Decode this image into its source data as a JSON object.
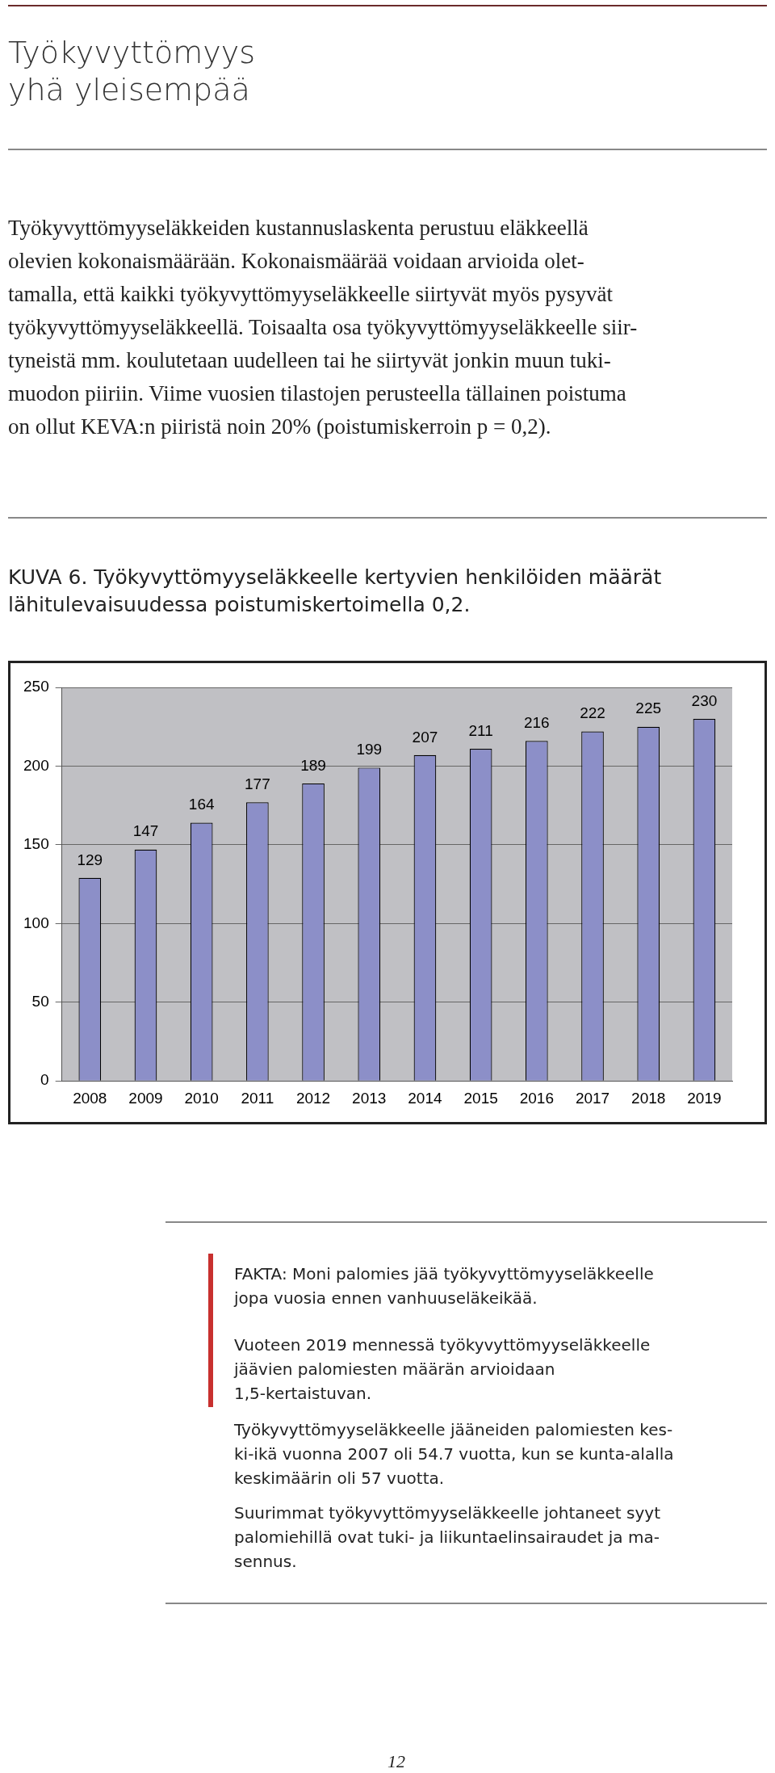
{
  "chart_data": {
    "type": "bar",
    "title": "Työkyvyttömyys\nyhä yleisempää",
    "subtitle": "KUVA 6. Työkyvyttömyyseläkkeelle kertyvien henkilöiden määrät\nlähitulevaisuudessa poistumiskertoimella 0,2.",
    "annotations": [
      "Työkyvyttömyyseläkkeiden kustannuslaskenta perustuu eläkkeellä\nolevien kokonaismäärään. Kokonaismäärää voidaan arvioida olet-\ntamalla, että kaikki työkyvyttömyyseläkkeelle siirtyvät myös pysyvät\ntyökyvyttömyyseläkkeellä. Toisaalta osa työkyvyttömyyseläkkeelle siir-\ntyneistä mm. koulutetaan uudelleen tai he siirtyvät jonkin muun tuki-\nmuodon piiriin. Viime vuosien tilastojen perusteella tällainen poistuma\non ollut KEVA:n piiristä noin 20% (poistumiskerroin p = 0,2).",
      "FAKTA: Moni palomies jää työkyvyttömyyseläkkeelle\njopa vuosia ennen vanhuuseläkeikää.",
      "Vuoteen 2019 mennessä työkyvyttömyyseläkkeelle\njäävien palomiesten määrän arvioidaan\n1,5-kertaistuvan.",
      "Työkyvyttömyyseläkkeelle jääneiden palomiesten kes-\nki-ikä vuonna 2007 oli 54.7 vuotta, kun se kunta-alalla\nkeskimäärin oli 57 vuotta.",
      "Suurimmat työkyvyttömyyseläkkeelle johtaneet syyt\npalomiehillä ovat tuki- ja liikuntaelinsairaudet ja ma-\nsennus.",
      "12"
    ],
    "categories": [
      "2008",
      "2009",
      "2010",
      "2011",
      "2012",
      "2013",
      "2014",
      "2015",
      "2016",
      "2017",
      "2018",
      "2019"
    ],
    "values": [
      129,
      147,
      164,
      177,
      189,
      199,
      207,
      211,
      216,
      222,
      225,
      230
    ],
    "color": "#8c8fc8",
    "ylim": [
      0,
      250
    ],
    "yticks": [
      0,
      50,
      100,
      150,
      200,
      250
    ],
    "grid": "y",
    "data_labels": true
  }
}
